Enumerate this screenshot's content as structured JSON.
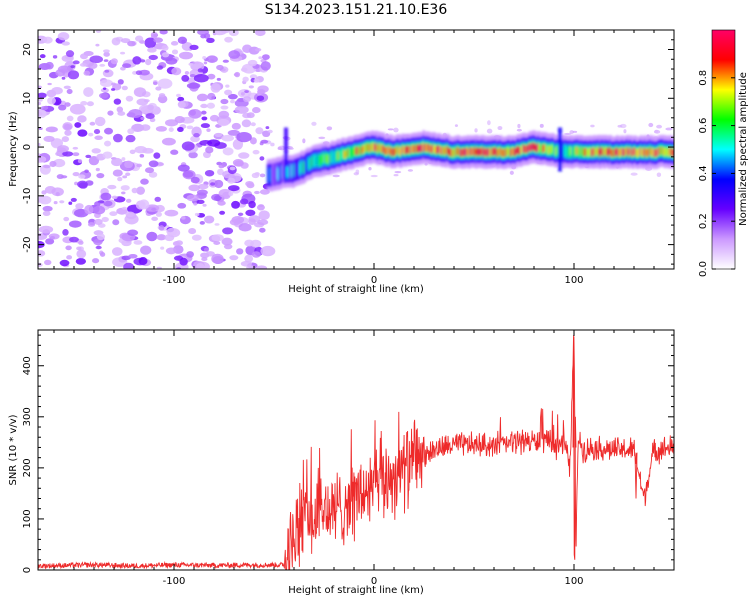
{
  "title": "S134.2023.151.21.10.E36",
  "colors": {
    "snr_line": "#ee2a2a",
    "axis": "#000000",
    "colormap": [
      "#ffffff",
      "#cc99ff",
      "#6600ff",
      "#0000ff",
      "#00ffff",
      "#00ff00",
      "#ffff00",
      "#ff0000",
      "#ff0066"
    ]
  },
  "chart_data": [
    {
      "type": "heatmap",
      "xlabel": "Height of straight line (km)",
      "ylabel": "Frequency (Hz)",
      "xlim": [
        -168,
        150
      ],
      "ylim": [
        -25,
        24
      ],
      "x_ticks": [
        -100,
        0,
        100
      ],
      "y_ticks": [
        -20,
        -10,
        0,
        10,
        20
      ],
      "colorbar": {
        "label": "Normalized spectral amplitude",
        "range": [
          0,
          1
        ],
        "ticks": [
          0.0,
          0.2,
          0.4,
          0.6,
          0.8
        ]
      },
      "regions": {
        "noise_x_range": [
          -168,
          -53
        ],
        "signal_start_x": -53,
        "signal_end_x": 150
      },
      "ridge": [
        {
          "x": -53,
          "y": -6,
          "amp": 0.3
        },
        {
          "x": -45,
          "y": -5,
          "amp": 0.35
        },
        {
          "x": -40,
          "y": -5,
          "amp": 0.4
        },
        {
          "x": -30,
          "y": -3,
          "amp": 0.5
        },
        {
          "x": -20,
          "y": -2,
          "amp": 0.6
        },
        {
          "x": -10,
          "y": -1,
          "amp": 0.75
        },
        {
          "x": 0,
          "y": 0,
          "amp": 0.85
        },
        {
          "x": 10,
          "y": -1,
          "amp": 0.85
        },
        {
          "x": 25,
          "y": 0,
          "amp": 0.9
        },
        {
          "x": 40,
          "y": -1,
          "amp": 0.85
        },
        {
          "x": 55,
          "y": -1,
          "amp": 0.9
        },
        {
          "x": 70,
          "y": -1,
          "amp": 0.85
        },
        {
          "x": 80,
          "y": 0,
          "amp": 0.9
        },
        {
          "x": 95,
          "y": -1,
          "amp": 0.5
        },
        {
          "x": 110,
          "y": -1,
          "amp": 0.85
        },
        {
          "x": 130,
          "y": -1,
          "amp": 0.9
        },
        {
          "x": 150,
          "y": -1,
          "amp": 0.8
        }
      ]
    },
    {
      "type": "line",
      "xlabel": "Height of straight line (km)",
      "ylabel": "SNR (10 * v/v)",
      "xlim": [
        -168,
        150
      ],
      "ylim": [
        0,
        470
      ],
      "x_ticks": [
        -100,
        0,
        100
      ],
      "y_ticks": [
        0,
        100,
        200,
        300,
        400
      ],
      "series": [
        {
          "x": [
            -168,
            -140,
            -120,
            -100,
            -80,
            -60,
            -45,
            -40,
            -35,
            -30,
            -25,
            -20,
            -15,
            -10,
            -5,
            0,
            5,
            10,
            15,
            20,
            25,
            30,
            40,
            50,
            60,
            70,
            75,
            80,
            85,
            90,
            95,
            98,
            100,
            101,
            102,
            105,
            110,
            120,
            130,
            135,
            140,
            150
          ],
          "values": [
            8,
            10,
            8,
            10,
            9,
            10,
            10,
            60,
            110,
            100,
            120,
            110,
            130,
            140,
            150,
            160,
            175,
            185,
            200,
            210,
            225,
            235,
            245,
            245,
            245,
            250,
            255,
            250,
            255,
            240,
            250,
            200,
            470,
            20,
            260,
            235,
            240,
            235,
            235,
            140,
            235,
            240
          ]
        }
      ]
    }
  ]
}
